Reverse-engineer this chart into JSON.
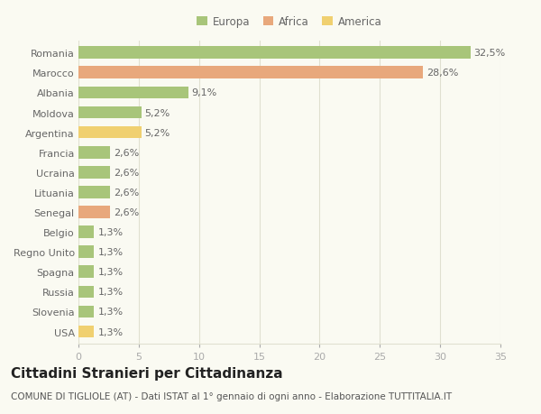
{
  "categories": [
    "Romania",
    "Marocco",
    "Albania",
    "Moldova",
    "Argentina",
    "Francia",
    "Ucraina",
    "Lituania",
    "Senegal",
    "Belgio",
    "Regno Unito",
    "Spagna",
    "Russia",
    "Slovenia",
    "USA"
  ],
  "values": [
    32.5,
    28.6,
    9.1,
    5.2,
    5.2,
    2.6,
    2.6,
    2.6,
    2.6,
    1.3,
    1.3,
    1.3,
    1.3,
    1.3,
    1.3
  ],
  "labels": [
    "32,5%",
    "28,6%",
    "9,1%",
    "5,2%",
    "5,2%",
    "2,6%",
    "2,6%",
    "2,6%",
    "2,6%",
    "1,3%",
    "1,3%",
    "1,3%",
    "1,3%",
    "1,3%",
    "1,3%"
  ],
  "colors": [
    "#a8c57a",
    "#e8a87c",
    "#a8c57a",
    "#a8c57a",
    "#f0d070",
    "#a8c57a",
    "#a8c57a",
    "#a8c57a",
    "#e8a87c",
    "#a8c57a",
    "#a8c57a",
    "#a8c57a",
    "#a8c57a",
    "#a8c57a",
    "#f0d070"
  ],
  "legend_labels": [
    "Europa",
    "Africa",
    "America"
  ],
  "legend_colors": [
    "#a8c57a",
    "#e8a87c",
    "#f0d070"
  ],
  "title": "Cittadini Stranieri per Cittadinanza",
  "subtitle": "COMUNE DI TIGLIOLE (AT) - Dati ISTAT al 1° gennaio di ogni anno - Elaborazione TUTTITALIA.IT",
  "xlim": [
    0,
    35
  ],
  "xticks": [
    0,
    5,
    10,
    15,
    20,
    25,
    30,
    35
  ],
  "background_color": "#fafaf2",
  "grid_color": "#e0e0d0",
  "bar_text_color": "#666666",
  "axis_text_color": "#666666",
  "label_fontsize": 8,
  "tick_fontsize": 8,
  "title_fontsize": 11,
  "subtitle_fontsize": 7.5,
  "legend_fontsize": 8.5
}
